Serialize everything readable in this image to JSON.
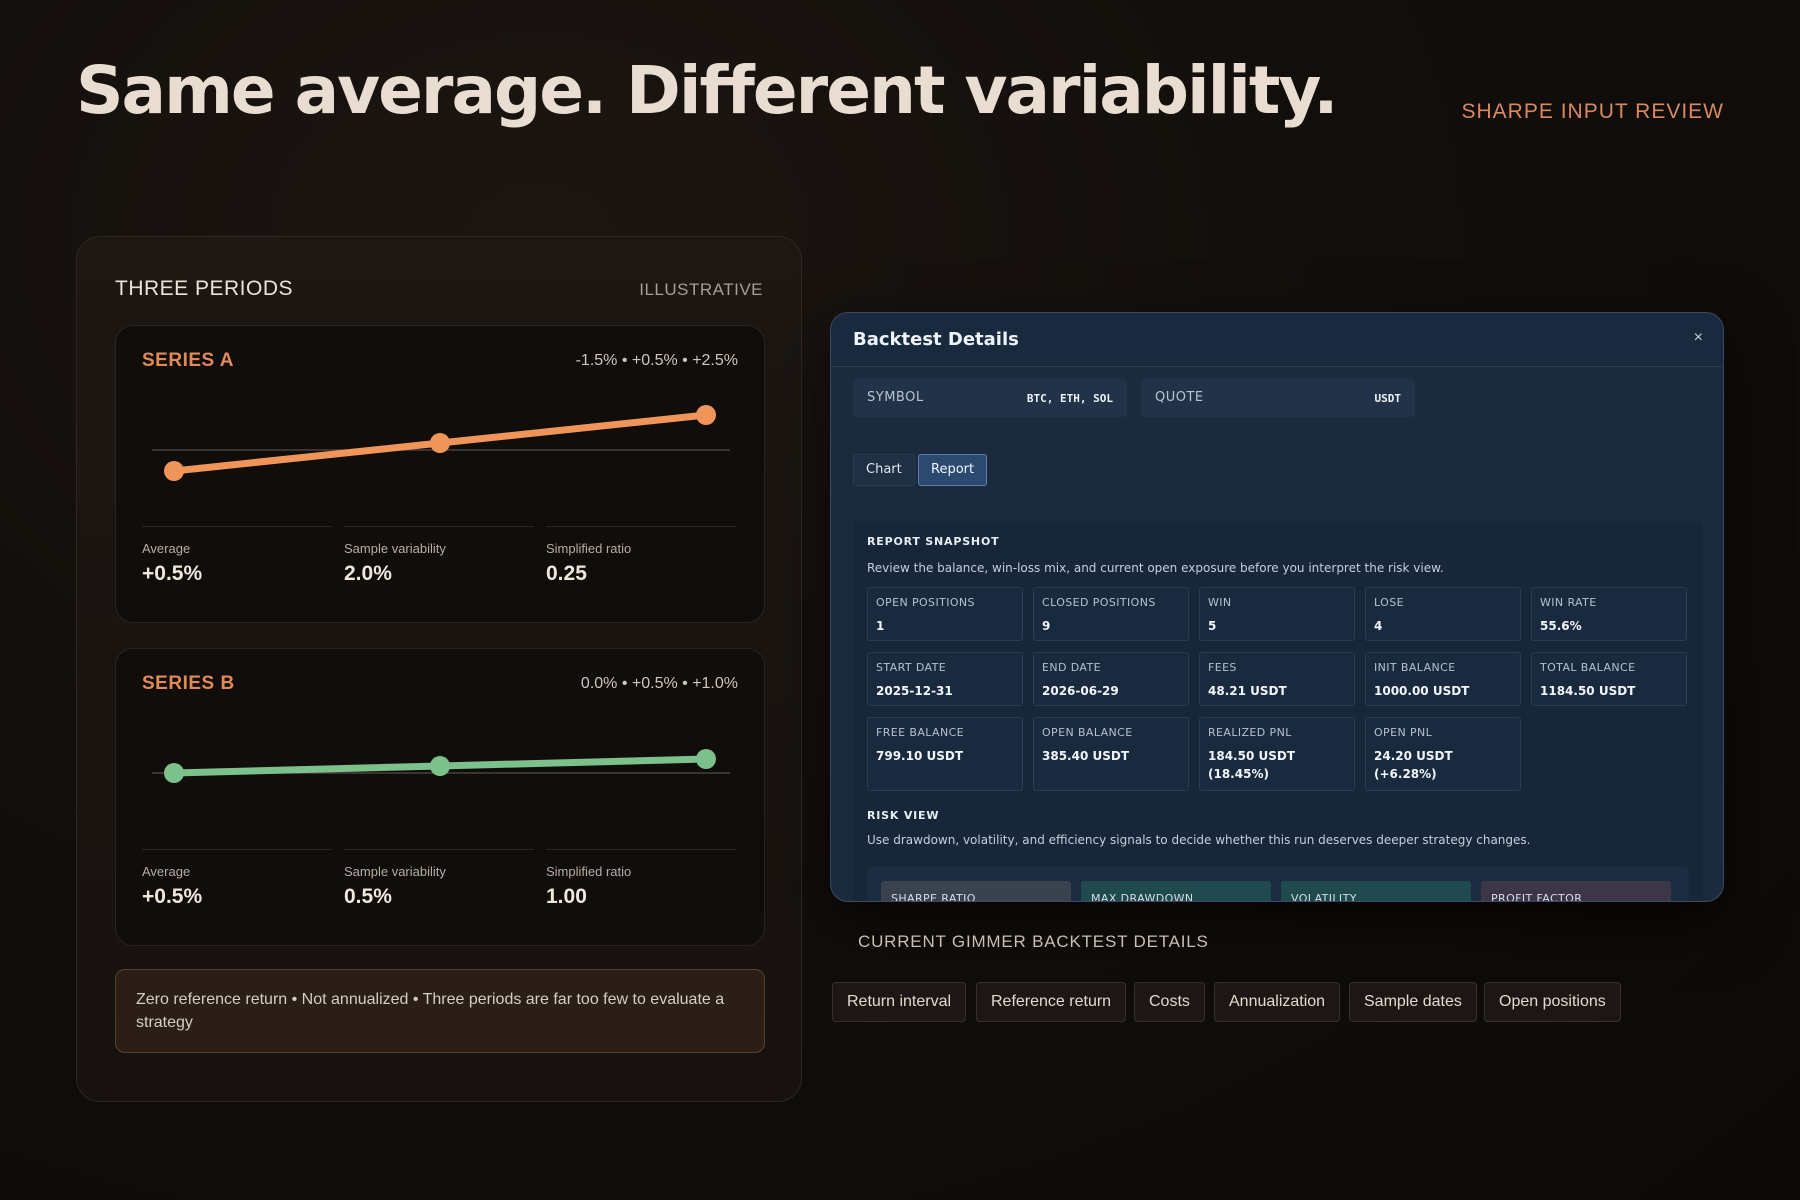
{
  "headline": "Same average. Different variability.",
  "top_tag": "SHARPE INPUT REVIEW",
  "left_panel": {
    "title": "THREE PERIODS",
    "tag": "ILLUSTRATIVE",
    "series": [
      {
        "label": "SERIES A",
        "values_text": "-1.5% • +0.5% • +2.5%",
        "color": "#f0955a",
        "returns": [
          -1.5,
          0.5,
          2.5
        ],
        "stats": [
          {
            "label": "Average",
            "value": "+0.5%"
          },
          {
            "label": "Sample variability",
            "value": "2.0%"
          },
          {
            "label": "Simplified ratio",
            "value": "0.25"
          }
        ]
      },
      {
        "label": "SERIES B",
        "values_text": "0.0% • +0.5% • +1.0%",
        "color": "#7cc08c",
        "returns": [
          0.0,
          0.5,
          1.0
        ],
        "stats": [
          {
            "label": "Average",
            "value": "+0.5%"
          },
          {
            "label": "Sample variability",
            "value": "0.5%"
          },
          {
            "label": "Simplified ratio",
            "value": "1.00"
          }
        ]
      }
    ],
    "note": "Zero reference return • Not annualized • Three periods are far too few to evaluate a strategy"
  },
  "window": {
    "title": "Backtest Details",
    "close": "×",
    "filters": [
      {
        "key": "SYMBOL",
        "value": "BTC, ETH, SOL"
      },
      {
        "key": "QUOTE",
        "value": "USDT"
      }
    ],
    "tabs": [
      {
        "label": "Chart",
        "active": false
      },
      {
        "label": "Report",
        "active": true
      }
    ],
    "report": {
      "title": "REPORT SNAPSHOT",
      "desc": "Review the balance, win-loss mix, and current open exposure before you interpret the risk view.",
      "metrics": [
        [
          {
            "k": "OPEN POSITIONS",
            "v": "1"
          },
          {
            "k": "CLOSED POSITIONS",
            "v": "9"
          },
          {
            "k": "WIN",
            "v": "5"
          },
          {
            "k": "LOSE",
            "v": "4"
          },
          {
            "k": "WIN RATE",
            "v": "55.6%"
          }
        ],
        [
          {
            "k": "START DATE",
            "v": "2025-12-31"
          },
          {
            "k": "END DATE",
            "v": "2026-06-29"
          },
          {
            "k": "FEES",
            "v": "48.21 USDT"
          },
          {
            "k": "INIT BALANCE",
            "v": "1000.00 USDT"
          },
          {
            "k": "TOTAL BALANCE",
            "v": "1184.50 USDT"
          }
        ],
        [
          {
            "k": "FREE BALANCE",
            "v": "799.10 USDT"
          },
          {
            "k": "OPEN BALANCE",
            "v": "385.40 USDT"
          },
          {
            "k": "REALIZED PNL",
            "v": "184.50 USDT (18.45%)"
          },
          {
            "k": "OPEN PNL",
            "v": "24.20 USDT (+6.28%)"
          }
        ]
      ],
      "risk_title": "RISK VIEW",
      "risk_desc": "Use drawdown, volatility, and efficiency signals to decide whether this run deserves deeper strategy changes.",
      "risk_cards": [
        {
          "label": "SHARPE RATIO",
          "color": "#3a4250"
        },
        {
          "label": "MAX DRAWDOWN",
          "color": "#1f4a4e"
        },
        {
          "label": "VOLATILITY",
          "color": "#1f4a4e"
        },
        {
          "label": "PROFIT FACTOR",
          "color": "#3d3648"
        }
      ]
    }
  },
  "below_title": "CURRENT GIMMER BACKTEST DETAILS",
  "chips": [
    "Return interval",
    "Reference return",
    "Costs",
    "Annualization",
    "Sample dates",
    "Open positions"
  ]
}
